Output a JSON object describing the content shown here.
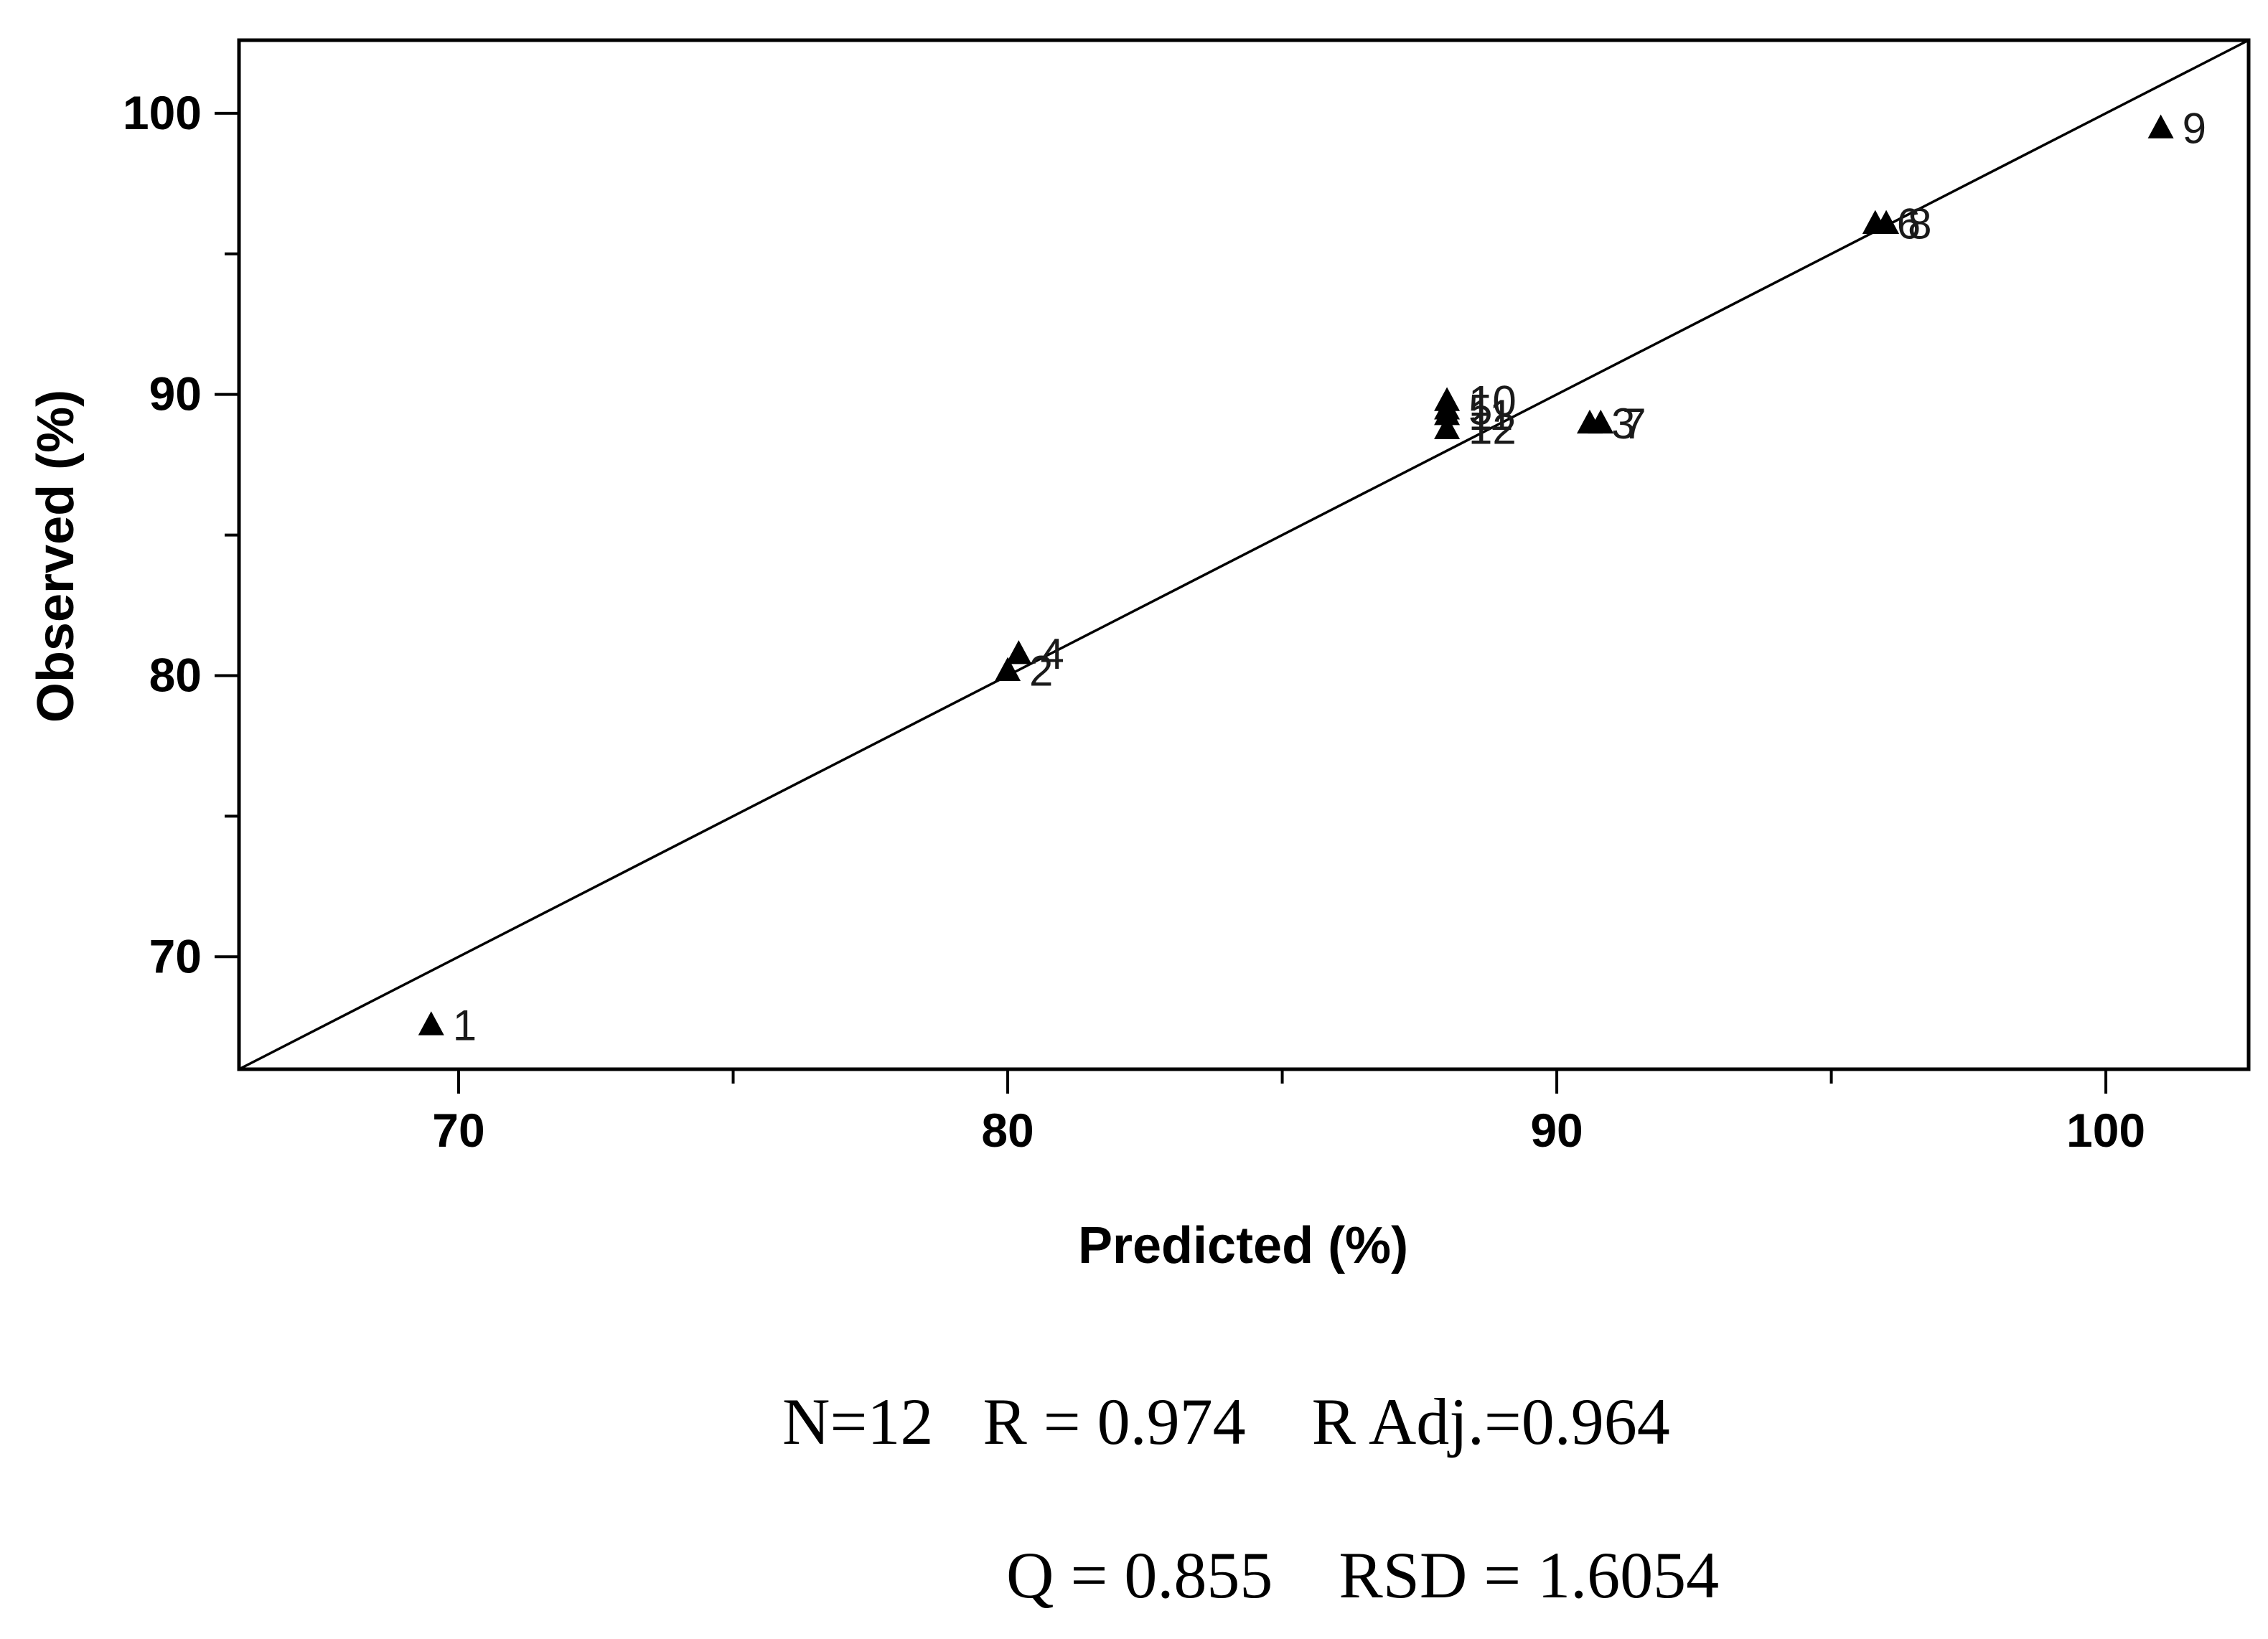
{
  "chart_data": {
    "type": "scatter",
    "title": "",
    "xlabel": "Predicted (%)",
    "ylabel": "Observed (%)",
    "xlim": [
      66,
      102.6
    ],
    "ylim": [
      66,
      102.6
    ],
    "xticks": [
      70,
      80,
      90,
      100
    ],
    "yticks": [
      70,
      80,
      90,
      100
    ],
    "grid": false,
    "marker": "triangle",
    "points": [
      {
        "label": "1",
        "x": 69.5,
        "y": 67.6
      },
      {
        "label": "2",
        "x": 80.0,
        "y": 80.2
      },
      {
        "label": "3",
        "x": 90.6,
        "y": 89.0
      },
      {
        "label": "4",
        "x": 80.2,
        "y": 80.8
      },
      {
        "label": "5",
        "x": 88.0,
        "y": 89.5
      },
      {
        "label": "6",
        "x": 95.8,
        "y": 96.1
      },
      {
        "label": "7",
        "x": 90.8,
        "y": 89.0
      },
      {
        "label": "8",
        "x": 96.0,
        "y": 96.1
      },
      {
        "label": "9",
        "x": 101.0,
        "y": 99.5
      },
      {
        "label": "10",
        "x": 88.0,
        "y": 89.8
      },
      {
        "label": "11",
        "x": 88.0,
        "y": 89.3
      },
      {
        "label": "12",
        "x": 88.0,
        "y": 88.8
      }
    ],
    "reference_line": {
      "type": "identity"
    }
  },
  "stats": {
    "line1": "N=12   R = 0.974    R Adj.=0.964",
    "line2": "Q = 0.855    RSD = 1.6054"
  }
}
